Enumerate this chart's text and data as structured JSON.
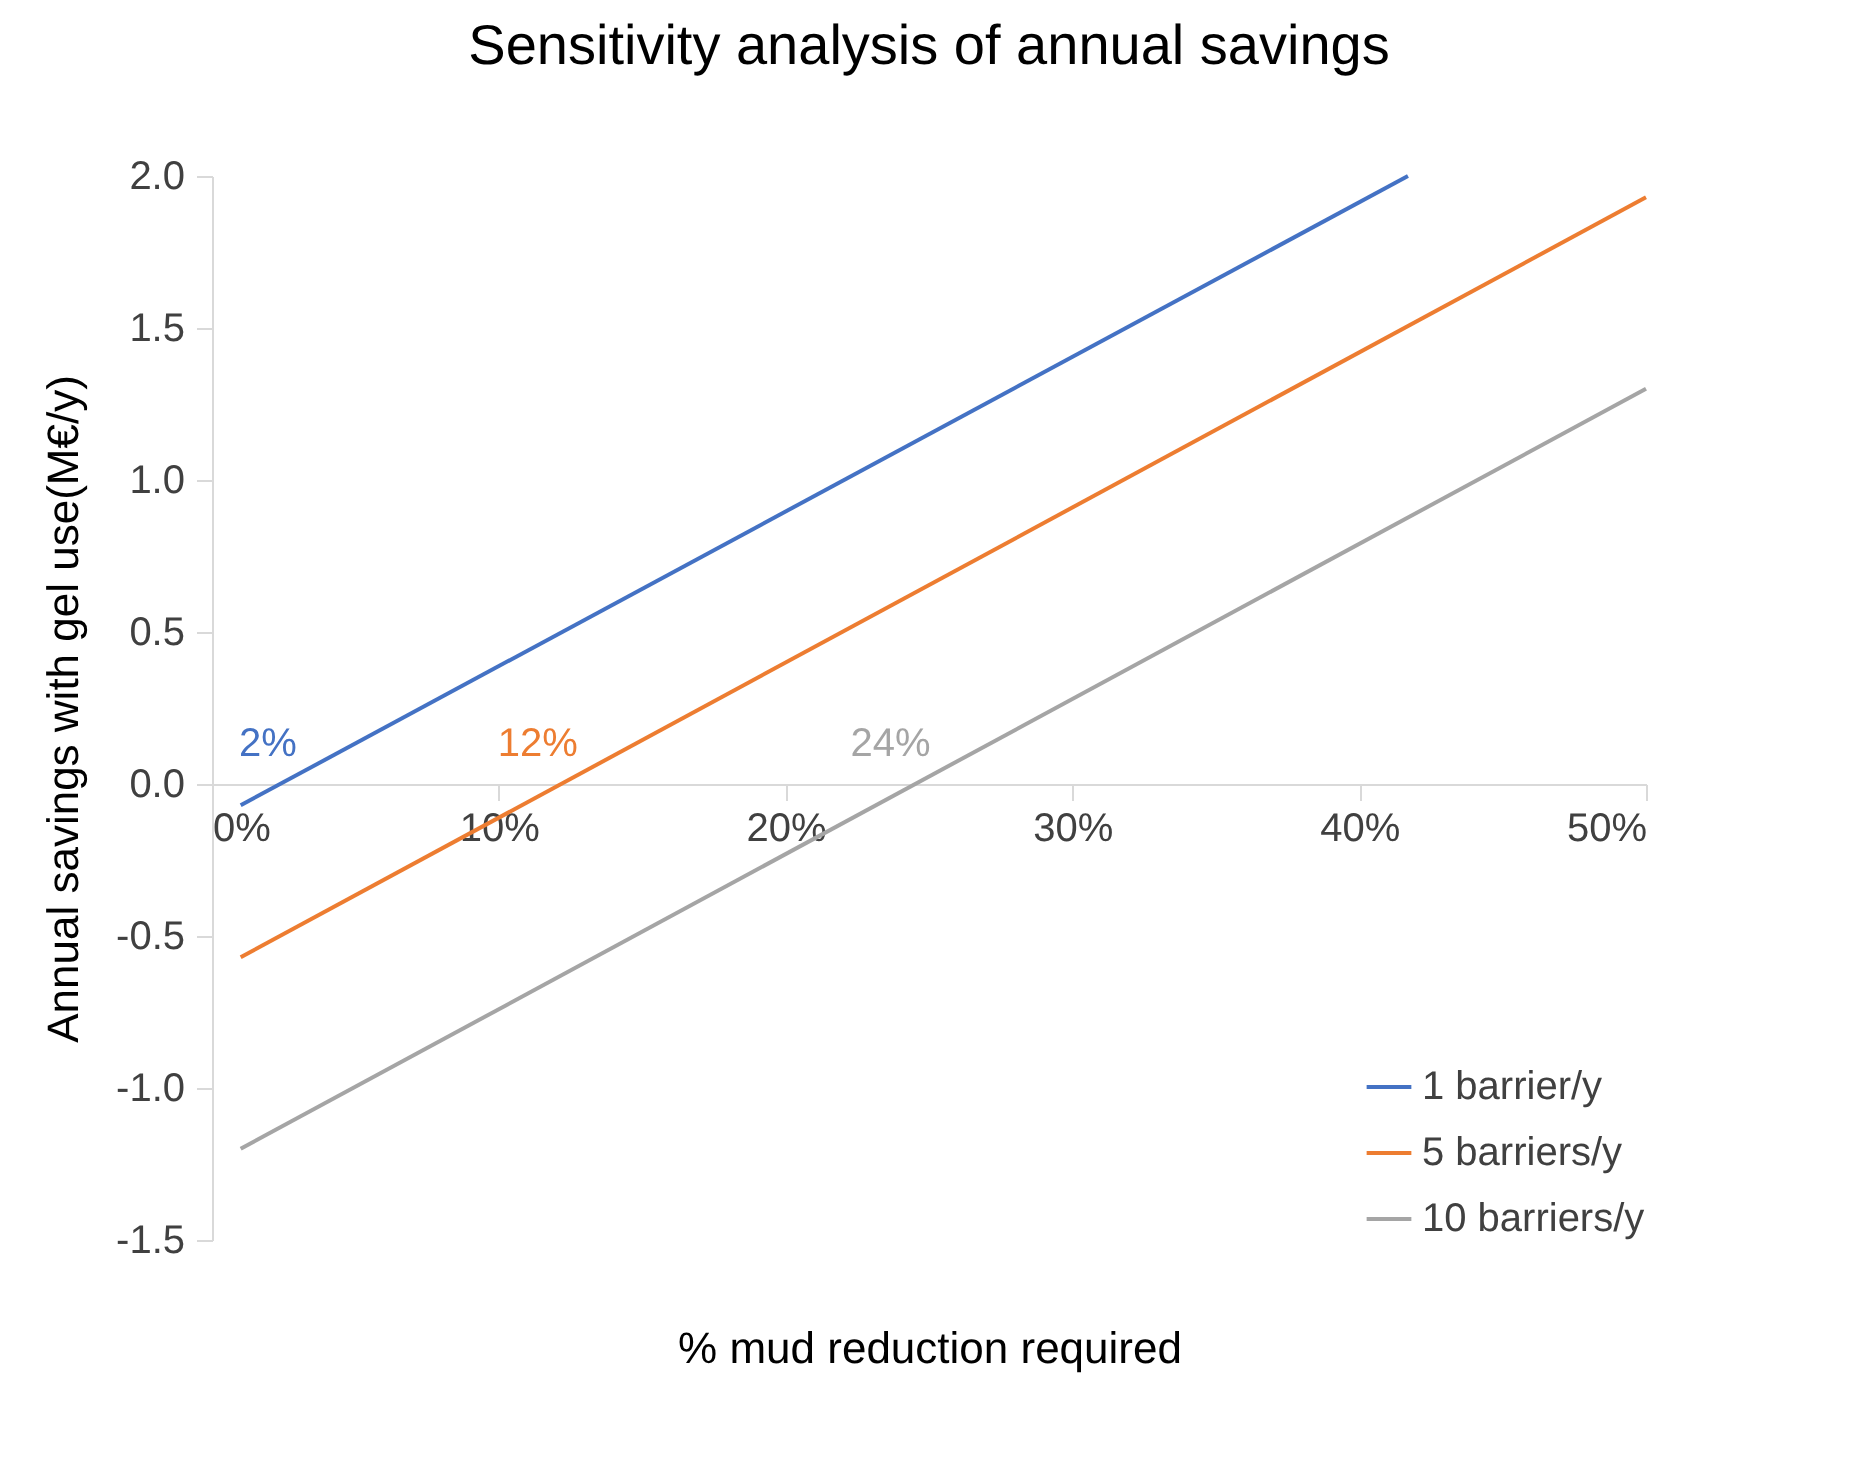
{
  "chart_data": {
    "type": "line",
    "title": "Sensitivity analysis of annual savings",
    "xlabel": "% mud reduction required",
    "ylabel": "Annual savings with gel use(M€/y)",
    "series": [
      {
        "name": "1 barrier/y",
        "color": "#4472c4",
        "x": [
          1,
          41.7
        ],
        "values": [
          -0.07,
          2.0
        ]
      },
      {
        "name": "5 barriers/y",
        "color": "#ed7d31",
        "x": [
          1,
          50
        ],
        "values": [
          -0.57,
          1.93
        ]
      },
      {
        "name": "10 barriers/y",
        "color": "#a5a5a5",
        "x": [
          1,
          50
        ],
        "values": [
          -1.2,
          1.3
        ]
      }
    ],
    "annotations": [
      {
        "text": "2%",
        "x": 2.4,
        "y": 0
      },
      {
        "text": "12%",
        "x": 12.2,
        "y": 0
      },
      {
        "text": "24%",
        "x": 24.5,
        "y": 0
      }
    ],
    "xlim": [
      0,
      50
    ],
    "xticks": [
      {
        "value": 0,
        "label": "0%"
      },
      {
        "value": 10,
        "label": "10%"
      },
      {
        "value": 20,
        "label": "20%"
      },
      {
        "value": 30,
        "label": "30%"
      },
      {
        "value": 40,
        "label": "40%"
      },
      {
        "value": 50,
        "label": "50%"
      }
    ],
    "ylim": [
      -1.5,
      2.0
    ],
    "yticks": [
      {
        "value": -1.5,
        "label": "-1.5"
      },
      {
        "value": -1,
        "label": "-1.0"
      },
      {
        "value": -0.5,
        "label": "-0.5"
      },
      {
        "value": 0,
        "label": "0.0"
      },
      {
        "value": 0.5,
        "label": "0.5"
      },
      {
        "value": 1,
        "label": "1.0"
      },
      {
        "value": 1.5,
        "label": "1.5"
      },
      {
        "value": 2,
        "label": "2.0"
      }
    ],
    "legend": "bottom right",
    "grid": false,
    "line_style": "solid",
    "marker": "none"
  }
}
